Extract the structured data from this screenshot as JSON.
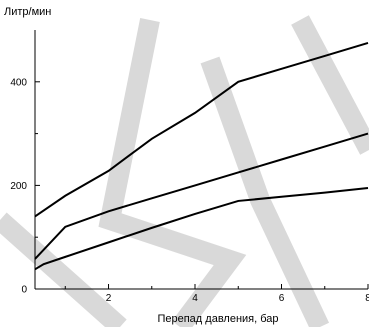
{
  "chart_data": {
    "type": "line",
    "title": "",
    "xlabel": "Перепад давления, бар",
    "ylabel": "Литр/мин",
    "xlim": [
      0.3,
      8
    ],
    "ylim": [
      0,
      500
    ],
    "xticks": [
      2,
      4,
      6,
      8
    ],
    "yticks": [
      0,
      200,
      400
    ],
    "x_tick_labels": [
      "2",
      "4",
      "6",
      "8"
    ],
    "y_tick_labels": [
      "0",
      "200",
      "400"
    ],
    "grid": false,
    "legend": "none",
    "series": [
      {
        "x": [
          0.3,
          1,
          2,
          3,
          4,
          5,
          6,
          7,
          8
        ],
        "y": [
          140,
          180,
          228,
          290,
          340,
          400,
          425,
          450,
          475
        ]
      },
      {
        "x": [
          0.3,
          1,
          2,
          3,
          4,
          5,
          6,
          7,
          8
        ],
        "y": [
          58,
          120,
          150,
          175,
          200,
          225,
          250,
          275,
          300
        ]
      },
      {
        "x": [
          0.3,
          0.5,
          1,
          2,
          3,
          4,
          5,
          6,
          7,
          8
        ],
        "y": [
          38,
          48,
          62,
          90,
          118,
          145,
          170,
          178,
          186,
          195
        ]
      }
    ],
    "line_color": "#000000"
  },
  "watermark": {
    "text": "SKM",
    "color": "#d9d9d9"
  }
}
